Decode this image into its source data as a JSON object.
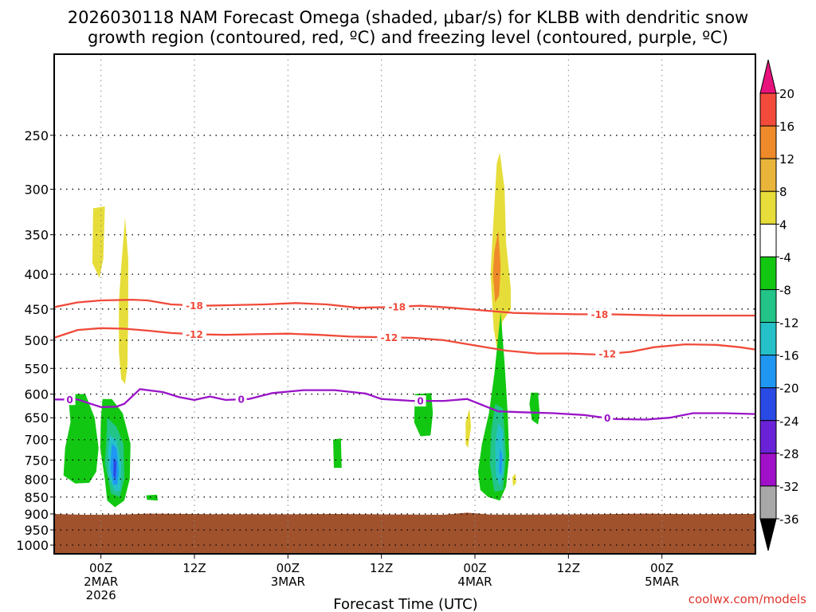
{
  "chart_data": {
    "type": "heatmap",
    "title_line1": "2026030118 NAM Forecast Omega (shaded, μbar/s) for KLBB with dendritic snow",
    "title_line2": "growth region (contoured, red, ºC) and freezing level (contoured, purple, ºC)",
    "xlabel": "Forecast Time (UTC)",
    "credit": "coolwx.com/models",
    "y_axis": {
      "scale": "pressure (log), inverted",
      "ticks": [
        250,
        300,
        350,
        400,
        450,
        500,
        550,
        600,
        650,
        700,
        750,
        800,
        850,
        900,
        950,
        1000
      ],
      "range_hPa": [
        190,
        1030
      ]
    },
    "x_axis": {
      "range_hours": [
        -6,
        84
      ],
      "ticks": [
        {
          "hours": 0,
          "lines": [
            "00Z",
            "2MAR",
            "2026"
          ]
        },
        {
          "hours": 12,
          "lines": [
            "12Z"
          ]
        },
        {
          "hours": 24,
          "lines": [
            "00Z",
            "3MAR"
          ]
        },
        {
          "hours": 36,
          "lines": [
            "12Z"
          ]
        },
        {
          "hours": 48,
          "lines": [
            "00Z",
            "4MAR"
          ]
        },
        {
          "hours": 60,
          "lines": [
            "12Z"
          ]
        },
        {
          "hours": 72,
          "lines": [
            "00Z",
            "5MAR"
          ]
        }
      ]
    },
    "grid": true,
    "colorbar": {
      "labels": [
        "20",
        "16",
        "12",
        "8",
        "4",
        "-4",
        "-8",
        "-12",
        "-16",
        "-20",
        "-24",
        "-28",
        "-32",
        "-36"
      ],
      "top_arrow_color": "#e8127c",
      "bottom_arrow_color": "#000000",
      "bands": [
        {
          "from": 16,
          "to": 20,
          "color": "#f24b3c"
        },
        {
          "from": 12,
          "to": 16,
          "color": "#ef8a2a"
        },
        {
          "from": 8,
          "to": 12,
          "color": "#e9b43a"
        },
        {
          "from": 4,
          "to": 8,
          "color": "#e6dd3a"
        },
        {
          "from": -4,
          "to": 4,
          "color": "#ffffff"
        },
        {
          "from": -8,
          "to": -4,
          "color": "#12c712"
        },
        {
          "from": -12,
          "to": -8,
          "color": "#22c488"
        },
        {
          "from": -16,
          "to": -12,
          "color": "#24c2c8"
        },
        {
          "from": -20,
          "to": -16,
          "color": "#1f97f2"
        },
        {
          "from": -24,
          "to": -20,
          "color": "#2a4ae6"
        },
        {
          "from": -28,
          "to": -24,
          "color": "#6a22d8"
        },
        {
          "from": -32,
          "to": -28,
          "color": "#a010c8"
        },
        {
          "from": -36,
          "to": -32,
          "color": "#a8a8a8"
        }
      ]
    },
    "terrain": {
      "color": "#a0522d",
      "surface_hPa": 900
    },
    "contours": [
      {
        "name": "-18",
        "color": "#f04a3a",
        "labels_at_hours": [
          12,
          38,
          64
        ],
        "points": [
          [
            -6,
            447
          ],
          [
            -3,
            440
          ],
          [
            0,
            437
          ],
          [
            4,
            436
          ],
          [
            6,
            437
          ],
          [
            9,
            443
          ],
          [
            13,
            445
          ],
          [
            17,
            444
          ],
          [
            21,
            443
          ],
          [
            25,
            441
          ],
          [
            29,
            443
          ],
          [
            33,
            448
          ],
          [
            37,
            447
          ],
          [
            41,
            445
          ],
          [
            45,
            448
          ],
          [
            49,
            452
          ],
          [
            53,
            456
          ],
          [
            57,
            457
          ],
          [
            61,
            458
          ],
          [
            65,
            458
          ],
          [
            69,
            459
          ],
          [
            73,
            460
          ],
          [
            77,
            460
          ],
          [
            81,
            460
          ],
          [
            84,
            460
          ]
        ]
      },
      {
        "name": "-12",
        "color": "#f04a3a",
        "labels_at_hours": [
          12,
          37,
          65
        ],
        "points": [
          [
            -6,
            496
          ],
          [
            -3,
            483
          ],
          [
            0,
            480
          ],
          [
            3,
            481
          ],
          [
            6,
            484
          ],
          [
            9,
            488
          ],
          [
            12,
            490
          ],
          [
            16,
            491
          ],
          [
            20,
            490
          ],
          [
            24,
            489
          ],
          [
            28,
            491
          ],
          [
            32,
            494
          ],
          [
            36,
            495
          ],
          [
            40,
            496
          ],
          [
            44,
            500
          ],
          [
            48,
            509
          ],
          [
            52,
            518
          ],
          [
            56,
            523
          ],
          [
            60,
            523
          ],
          [
            64,
            525
          ],
          [
            68,
            520
          ],
          [
            71,
            512
          ],
          [
            75,
            507
          ],
          [
            79,
            508
          ],
          [
            82,
            512
          ],
          [
            84,
            516
          ]
        ]
      },
      {
        "name": "0",
        "color": "#9a14c8",
        "labels_at_hours": [
          -4,
          18,
          41,
          65
        ],
        "points": [
          [
            -6,
            611
          ],
          [
            -3,
            611
          ],
          [
            0,
            627
          ],
          [
            2,
            626
          ],
          [
            3,
            620
          ],
          [
            5,
            590
          ],
          [
            8,
            596
          ],
          [
            10,
            606
          ],
          [
            12,
            612
          ],
          [
            14,
            605
          ],
          [
            16,
            612
          ],
          [
            19,
            610
          ],
          [
            22,
            598
          ],
          [
            26,
            592
          ],
          [
            30,
            592
          ],
          [
            34,
            599
          ],
          [
            36,
            610
          ],
          [
            40,
            614
          ],
          [
            44,
            614
          ],
          [
            47,
            610
          ],
          [
            49,
            623
          ],
          [
            51,
            636
          ],
          [
            54,
            638
          ],
          [
            58,
            640
          ],
          [
            62,
            644
          ],
          [
            66,
            653
          ],
          [
            70,
            654
          ],
          [
            73,
            650
          ],
          [
            76,
            640
          ],
          [
            80,
            640
          ],
          [
            84,
            642
          ]
        ]
      }
    ],
    "omega_regions": [
      {
        "name": "up-1",
        "value": 6,
        "color": "#e6dd3a",
        "points": [
          [
            -1,
            320
          ],
          [
            0.5,
            318
          ],
          [
            0.3,
            380
          ],
          [
            -0.2,
            405
          ],
          [
            -1.1,
            385
          ]
        ]
      },
      {
        "name": "up-2",
        "value": 6,
        "color": "#e6dd3a",
        "points": [
          [
            2.3,
            440
          ],
          [
            2.6,
            390
          ],
          [
            3.1,
            330
          ],
          [
            3.5,
            380
          ],
          [
            3.5,
            460
          ],
          [
            3.4,
            545
          ],
          [
            3.1,
            580
          ],
          [
            2.6,
            570
          ],
          [
            2.3,
            520
          ]
        ]
      },
      {
        "name": "up-3",
        "value": 6,
        "color": "#e6dd3a",
        "points": [
          [
            50.3,
            345
          ],
          [
            50.8,
            275
          ],
          [
            51.2,
            265
          ],
          [
            51.8,
            300
          ],
          [
            52.0,
            360
          ],
          [
            52.6,
            420
          ],
          [
            52.6,
            450
          ],
          [
            51.5,
            470
          ],
          [
            51.3,
            560
          ],
          [
            50.9,
            522
          ],
          [
            50.4,
            480
          ],
          [
            50.0,
            400
          ]
        ]
      },
      {
        "name": "up-3-core",
        "value": 14,
        "color": "#ef8a2a",
        "points": [
          [
            50.5,
            370
          ],
          [
            51.0,
            345
          ],
          [
            51.3,
            390
          ],
          [
            51.1,
            430
          ],
          [
            50.6,
            440
          ],
          [
            50.3,
            400
          ]
        ]
      },
      {
        "name": "up-4",
        "value": 6,
        "color": "#e6dd3a",
        "points": [
          [
            46.8,
            660
          ],
          [
            47.3,
            630
          ],
          [
            47.5,
            670
          ],
          [
            47.1,
            720
          ],
          [
            46.8,
            710
          ]
        ]
      },
      {
        "name": "up-5",
        "value": 6,
        "color": "#e6dd3a",
        "points": [
          [
            52.8,
            795
          ],
          [
            53.2,
            785
          ],
          [
            53.3,
            810
          ],
          [
            52.9,
            820
          ]
        ]
      },
      {
        "name": "down-1",
        "value": -6,
        "color": "#12c712",
        "points": [
          [
            -4.2,
            600
          ],
          [
            -2.0,
            600
          ],
          [
            -0.8,
            650
          ],
          [
            -0.3,
            720
          ],
          [
            -0.6,
            780
          ],
          [
            -1.5,
            810
          ],
          [
            -3.3,
            812
          ],
          [
            -4.8,
            790
          ],
          [
            -4.6,
            720
          ],
          [
            -3.9,
            660
          ]
        ]
      },
      {
        "name": "down-2",
        "value": -6,
        "color": "#12c712",
        "points": [
          [
            0.2,
            610
          ],
          [
            1.4,
            610
          ],
          [
            2.8,
            640
          ],
          [
            3.8,
            710
          ],
          [
            3.7,
            800
          ],
          [
            3.0,
            860
          ],
          [
            1.8,
            880
          ],
          [
            0.8,
            860
          ],
          [
            0.5,
            800
          ],
          [
            -0.1,
            720
          ],
          [
            0.0,
            650
          ]
        ]
      },
      {
        "name": "down-2-a",
        "value": -10,
        "color": "#22c488",
        "points": [
          [
            0.8,
            650
          ],
          [
            2.0,
            670
          ],
          [
            2.9,
            710
          ],
          [
            3.0,
            800
          ],
          [
            2.4,
            850
          ],
          [
            1.3,
            840
          ],
          [
            0.5,
            760
          ],
          [
            0.7,
            700
          ]
        ]
      },
      {
        "name": "down-2-b",
        "value": -14,
        "color": "#24c2c8",
        "points": [
          [
            1.1,
            690
          ],
          [
            2.0,
            700
          ],
          [
            2.6,
            760
          ],
          [
            2.5,
            830
          ],
          [
            1.8,
            835
          ],
          [
            1.0,
            790
          ],
          [
            0.9,
            730
          ]
        ]
      },
      {
        "name": "down-2-c",
        "value": -18,
        "color": "#1f97f2",
        "points": [
          [
            1.4,
            710
          ],
          [
            2.0,
            720
          ],
          [
            2.3,
            780
          ],
          [
            2.1,
            815
          ],
          [
            1.6,
            815
          ],
          [
            1.2,
            770
          ]
        ]
      },
      {
        "name": "down-2-d",
        "value": -22,
        "color": "#2a4ae6",
        "points": [
          [
            1.6,
            745
          ],
          [
            2.0,
            755
          ],
          [
            1.9,
            800
          ],
          [
            1.6,
            790
          ]
        ]
      },
      {
        "name": "down-3",
        "value": -6,
        "color": "#12c712",
        "points": [
          [
            5.8,
            845
          ],
          [
            7.2,
            843
          ],
          [
            7.3,
            860
          ],
          [
            5.9,
            858
          ]
        ]
      },
      {
        "name": "down-4",
        "value": -6,
        "color": "#12c712",
        "points": [
          [
            29.8,
            700
          ],
          [
            30.8,
            697
          ],
          [
            30.9,
            770
          ],
          [
            29.9,
            770
          ]
        ]
      },
      {
        "name": "down-5",
        "value": -6,
        "color": "#12c712",
        "points": [
          [
            40.3,
            600
          ],
          [
            42.4,
            598
          ],
          [
            42.6,
            640
          ],
          [
            42.3,
            690
          ],
          [
            41.0,
            692
          ],
          [
            40.2,
            660
          ]
        ]
      },
      {
        "name": "down-6",
        "value": -6,
        "color": "#12c712",
        "points": [
          [
            55.2,
            597
          ],
          [
            56.1,
            597
          ],
          [
            56.3,
            640
          ],
          [
            56.1,
            665
          ],
          [
            55.3,
            655
          ],
          [
            55.0,
            620
          ]
        ]
      },
      {
        "name": "down-7",
        "value": -6,
        "color": "#12c712",
        "points": [
          [
            51.3,
            455
          ],
          [
            51.8,
            540
          ],
          [
            52.2,
            640
          ],
          [
            52.4,
            740
          ],
          [
            52.0,
            820
          ],
          [
            51.2,
            860
          ],
          [
            49.7,
            850
          ],
          [
            48.7,
            830
          ],
          [
            48.4,
            780
          ],
          [
            48.9,
            710
          ],
          [
            49.8,
            640
          ],
          [
            50.5,
            560
          ]
        ]
      },
      {
        "name": "down-7-a",
        "value": -10,
        "color": "#22c488",
        "points": [
          [
            50.6,
            620
          ],
          [
            51.6,
            630
          ],
          [
            52.0,
            740
          ],
          [
            51.6,
            830
          ],
          [
            50.5,
            835
          ],
          [
            49.9,
            760
          ],
          [
            50.1,
            680
          ]
        ]
      },
      {
        "name": "down-7-b",
        "value": -14,
        "color": "#24c2c8",
        "points": [
          [
            51.0,
            660
          ],
          [
            51.6,
            680
          ],
          [
            51.7,
            780
          ],
          [
            51.2,
            820
          ],
          [
            50.7,
            790
          ],
          [
            50.6,
            710
          ]
        ]
      },
      {
        "name": "down-7-c",
        "value": -18,
        "color": "#1f97f2",
        "points": [
          [
            51.2,
            720
          ],
          [
            51.5,
            740
          ],
          [
            51.4,
            790
          ],
          [
            51.1,
            780
          ]
        ]
      }
    ]
  }
}
